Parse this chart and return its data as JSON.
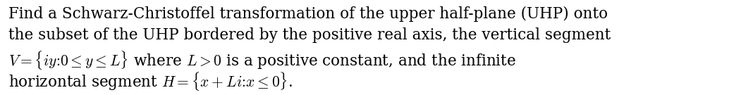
{
  "text_lines": [
    "Find a Schwarz-Christoffel transformation of the upper half-plane (UHP) onto",
    "the subset of the UHP bordered by the positive real axis, the vertical segment",
    "$V = \\{iy\\colon 0 \\leq y \\leq L\\}$ where $L > 0$ is a positive constant, and the infinite",
    "horizontal segment $H = \\{x + Li\\colon x \\leq 0\\}$."
  ],
  "background_color": "#ffffff",
  "text_color": "#000000",
  "font_size": 15.5,
  "fig_width": 10.51,
  "fig_height": 1.35,
  "dpi": 100
}
